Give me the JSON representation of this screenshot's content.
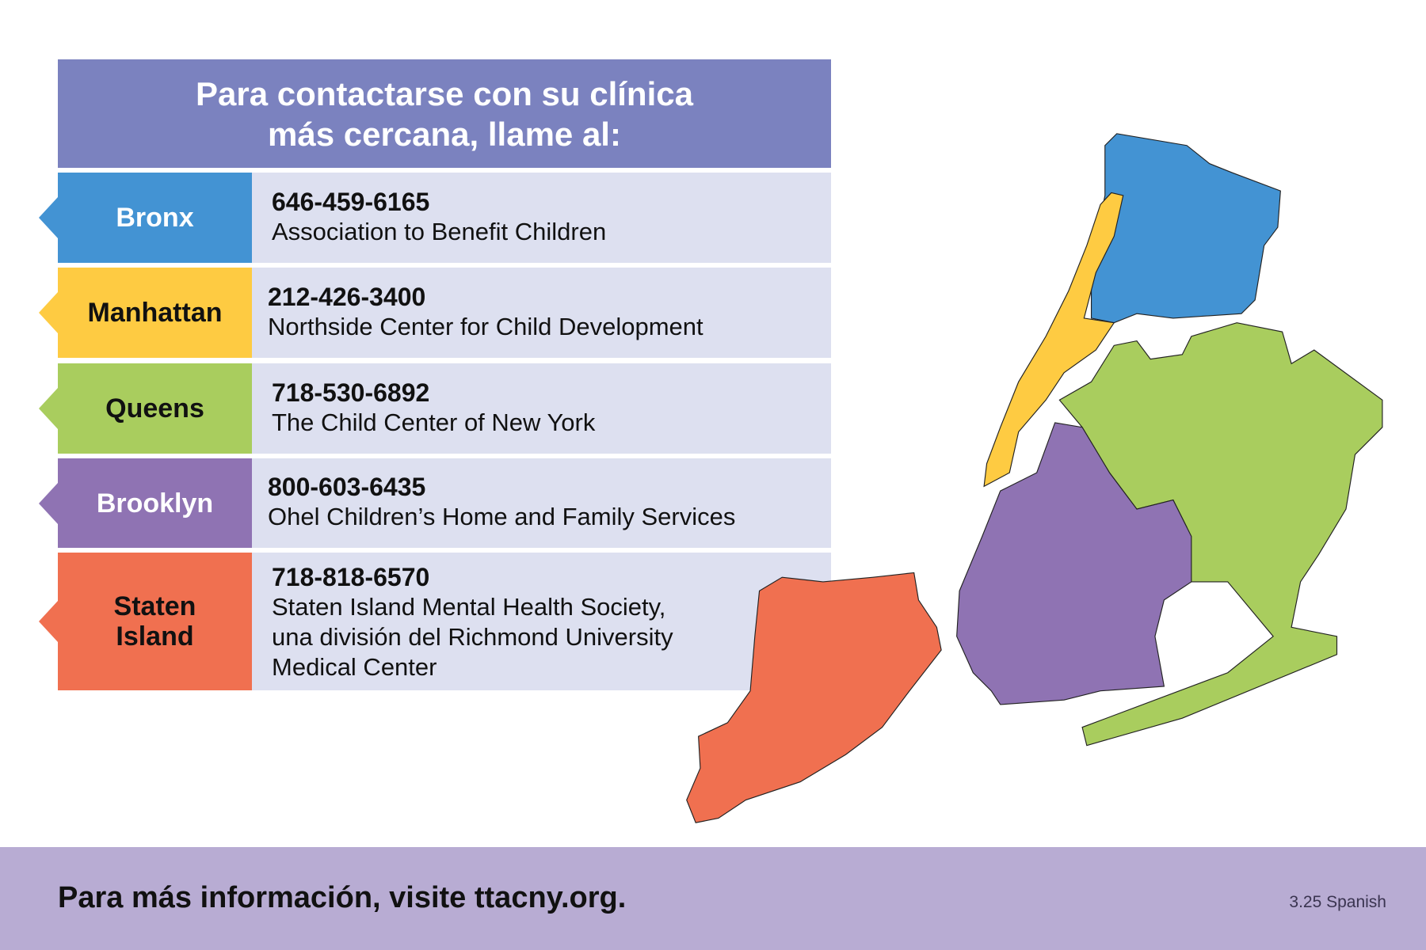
{
  "header": {
    "line1": "Para contactarse con su clínica",
    "line2": "más cercana, llame al:"
  },
  "boroughs": [
    {
      "name": "Bronx",
      "phone": "646-459-6165",
      "org": [
        "Association to Benefit Children"
      ],
      "color": "#4393d3",
      "text_color": "#ffffff"
    },
    {
      "name": "Manhattan",
      "phone": "212-426-3400",
      "org": [
        "Northside Center for Child Development"
      ],
      "color": "#fecb42",
      "text_color": "#111111"
    },
    {
      "name": "Queens",
      "phone": "718-530-6892",
      "org": [
        "The Child Center of New York"
      ],
      "color": "#a9cd5e",
      "text_color": "#111111"
    },
    {
      "name": "Brooklyn",
      "phone": "800-603-6435",
      "org": [
        "Ohel Children’s Home and Family Services"
      ],
      "color": "#8f73b3",
      "text_color": "#ffffff"
    },
    {
      "name_line1": "Staten",
      "name_line2": "Island",
      "phone": "718-818-6570",
      "org": [
        "Staten Island Mental Health Society,",
        "una división del Richmond University",
        "Medical Center"
      ],
      "color": "#f07050",
      "text_color": "#111111"
    }
  ],
  "footer": {
    "text": "Para más información, visite ttacny.org.",
    "version": "3.25 Spanish"
  }
}
